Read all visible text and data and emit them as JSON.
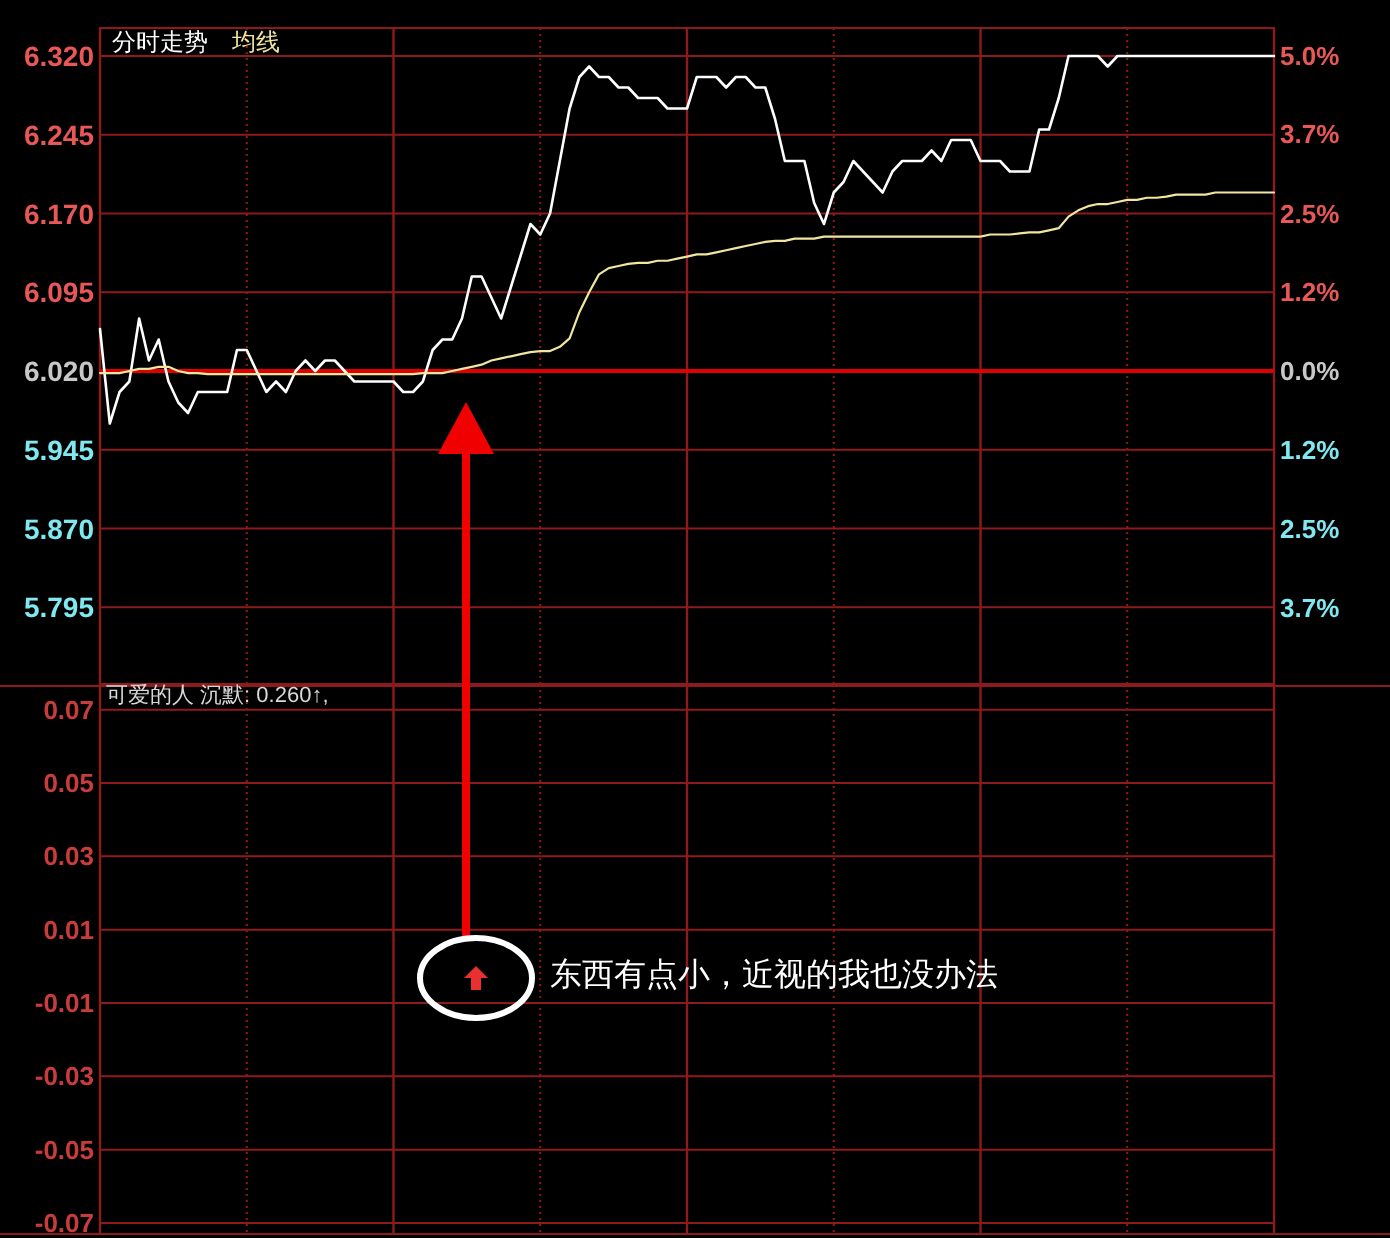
{
  "chart_data": [
    {
      "type": "line",
      "categories": [
        null,
        null,
        null,
        null,
        null,
        null,
        null,
        null,
        null,
        null,
        null,
        null,
        null,
        null,
        null,
        null,
        null,
        null,
        null,
        null,
        null,
        null,
        null,
        null,
        null,
        null,
        null,
        null,
        null,
        null,
        null,
        null,
        null,
        null,
        null,
        null,
        null,
        null,
        null,
        null,
        null,
        null,
        null,
        null,
        null,
        null,
        null,
        null,
        null,
        null,
        null,
        null,
        null,
        null,
        null,
        null,
        null,
        null,
        null,
        null,
        null,
        null,
        null,
        null,
        null,
        null,
        null,
        null,
        null,
        null,
        null,
        null,
        null,
        null,
        null,
        null,
        null,
        null,
        null,
        null,
        null,
        null,
        null,
        null,
        null,
        null,
        null,
        null,
        null,
        null,
        null,
        null,
        null,
        null,
        null,
        null,
        null,
        null,
        null,
        null,
        null,
        null,
        null,
        null,
        null,
        null,
        null,
        null,
        null,
        null,
        null,
        null,
        null,
        null,
        null,
        null,
        null,
        null,
        null,
        null,
        null
      ],
      "series": [
        {
          "name": "分时走势",
          "color": "#ffffff",
          "values": [
            6.06,
            5.97,
            6.0,
            6.01,
            6.07,
            6.03,
            6.05,
            6.01,
            5.99,
            5.98,
            6.0,
            6.0,
            6.0,
            6.0,
            6.04,
            6.04,
            6.02,
            6.0,
            6.01,
            6.0,
            6.02,
            6.03,
            6.02,
            6.03,
            6.03,
            6.02,
            6.01,
            6.01,
            6.01,
            6.01,
            6.01,
            6.0,
            6.0,
            6.01,
            6.04,
            6.05,
            6.05,
            6.07,
            6.11,
            6.11,
            6.09,
            6.07,
            6.1,
            6.13,
            6.16,
            6.15,
            6.17,
            6.22,
            6.27,
            6.3,
            6.31,
            6.3,
            6.3,
            6.29,
            6.29,
            6.28,
            6.28,
            6.28,
            6.27,
            6.27,
            6.27,
            6.3,
            6.3,
            6.3,
            6.29,
            6.3,
            6.3,
            6.29,
            6.29,
            6.26,
            6.22,
            6.22,
            6.22,
            6.18,
            6.16,
            6.19,
            6.2,
            6.22,
            6.21,
            6.2,
            6.19,
            6.21,
            6.22,
            6.22,
            6.22,
            6.23,
            6.22,
            6.24,
            6.24,
            6.24,
            6.22,
            6.22,
            6.22,
            6.21,
            6.21,
            6.21,
            6.25,
            6.25,
            6.28,
            6.32,
            6.32,
            6.32,
            6.32,
            6.31,
            6.32,
            6.32,
            6.32,
            6.32,
            6.32,
            6.32,
            6.32,
            6.32,
            6.32,
            6.32,
            6.32,
            6.32,
            6.32,
            6.32,
            6.32,
            6.32,
            6.32
          ]
        },
        {
          "name": "均线",
          "color": "#f0e6a0",
          "values": [
            6.018,
            6.018,
            6.018,
            6.02,
            6.022,
            6.022,
            6.024,
            6.024,
            6.02,
            6.018,
            6.018,
            6.017,
            6.017,
            6.017,
            6.017,
            6.017,
            6.017,
            6.017,
            6.017,
            6.017,
            6.017,
            6.017,
            6.017,
            6.017,
            6.017,
            6.017,
            6.017,
            6.017,
            6.017,
            6.017,
            6.017,
            6.017,
            6.017,
            6.018,
            6.018,
            6.018,
            6.02,
            6.022,
            6.024,
            6.026,
            6.03,
            6.032,
            6.034,
            6.036,
            6.038,
            6.039,
            6.039,
            6.043,
            6.051,
            6.076,
            6.095,
            6.112,
            6.118,
            6.12,
            6.122,
            6.123,
            6.123,
            6.125,
            6.125,
            6.127,
            6.129,
            6.131,
            6.131,
            6.133,
            6.135,
            6.137,
            6.139,
            6.141,
            6.143,
            6.144,
            6.144,
            6.146,
            6.146,
            6.146,
            6.148,
            6.148,
            6.148,
            6.148,
            6.148,
            6.148,
            6.148,
            6.148,
            6.148,
            6.148,
            6.148,
            6.148,
            6.148,
            6.148,
            6.148,
            6.148,
            6.148,
            6.15,
            6.15,
            6.15,
            6.151,
            6.152,
            6.152,
            6.154,
            6.156,
            6.167,
            6.173,
            6.177,
            6.179,
            6.179,
            6.181,
            6.183,
            6.183,
            6.185,
            6.185,
            6.186,
            6.188,
            6.188,
            6.188,
            6.188,
            6.19,
            6.19,
            6.19,
            6.19,
            6.19,
            6.19,
            6.19
          ]
        }
      ],
      "ylim": [
        5.72,
        6.32
      ],
      "yticks": [
        {
          "value": 6.32,
          "label": "6.320"
        },
        6.245,
        {
          "value": 6.17,
          "label": "6.170"
        },
        6.095,
        {
          "value": 6.02,
          "label": "6.020"
        },
        5.945,
        {
          "value": 5.87,
          "label": "5.870"
        },
        5.795
      ],
      "y2lim": [
        -4.98,
        4.98
      ],
      "y2ticks": [
        {
          "value": 4.98,
          "label": "5.0%"
        },
        {
          "value": 3.74,
          "label": "3.7%"
        },
        {
          "value": 2.49,
          "label": "2.5%"
        },
        {
          "value": 1.25,
          "label": "1.2%"
        },
        {
          "value": 0,
          "label": "0.0%"
        },
        {
          "value": -1.25,
          "label": "1.2%"
        },
        {
          "value": -2.49,
          "label": "2.5%"
        },
        {
          "value": -3.74,
          "label": "3.7%"
        }
      ],
      "grid": true,
      "ref_lines": [
        {
          "axis": "y",
          "value": 6.02,
          "color": "#e00000"
        }
      ],
      "legend": "top left",
      "tick_labels": "y"
    },
    {
      "type": "line",
      "title": "可爱的人 沉默: 0.260↑,",
      "categories": [
        null,
        null,
        null,
        null,
        null,
        null,
        null,
        null,
        null,
        null,
        null,
        null,
        null,
        null,
        null,
        null,
        null,
        null,
        null,
        null,
        null,
        null,
        null,
        null,
        null,
        null,
        null,
        null,
        null,
        null,
        null,
        null,
        null,
        null,
        null,
        null,
        null,
        null,
        null,
        null,
        null,
        null,
        null,
        null,
        null,
        null,
        null,
        null,
        null,
        null,
        null,
        null,
        null,
        null,
        null,
        null,
        null,
        null,
        null,
        null,
        null,
        null,
        null,
        null,
        null,
        null,
        null,
        null,
        null,
        null,
        null,
        null,
        null,
        null,
        null,
        null,
        null,
        null,
        null,
        null,
        null,
        null,
        null,
        null,
        null,
        null,
        null,
        null,
        null,
        null,
        null,
        null,
        null,
        null,
        null,
        null,
        null,
        null,
        null,
        null,
        null,
        null,
        null,
        null,
        null,
        null,
        null,
        null,
        null,
        null,
        null,
        null,
        null,
        null,
        null,
        null,
        null,
        null,
        null,
        null,
        null
      ],
      "values": [
        null,
        null,
        null,
        null,
        null,
        null,
        null,
        null,
        null,
        null,
        null,
        null,
        null,
        null,
        null,
        null,
        null,
        null,
        null,
        null,
        null,
        null,
        null,
        null,
        null,
        null,
        null,
        null,
        null,
        null,
        null,
        null,
        null,
        null,
        null,
        null,
        null,
        null,
        null,
        null,
        null,
        null,
        null,
        null,
        null,
        null,
        null,
        null,
        null,
        null,
        null,
        null,
        null,
        null,
        null,
        null,
        null,
        null,
        null,
        null,
        null,
        null,
        null,
        null,
        null,
        null,
        null,
        null,
        null,
        null,
        null,
        null,
        null,
        null,
        null,
        null,
        null,
        null,
        null,
        null,
        null,
        null,
        null,
        null,
        null,
        null,
        null,
        null,
        null,
        null,
        null,
        null,
        null,
        null,
        null,
        null,
        null,
        null,
        null,
        null,
        null,
        null,
        null,
        null,
        null,
        null,
        null,
        null,
        null,
        null,
        null,
        null,
        null,
        null,
        null,
        null,
        null,
        null,
        null,
        null,
        null
      ],
      "ylim": [
        -0.073,
        0.077
      ],
      "yticks": [
        0.07,
        0.05,
        0.03,
        0.01,
        -0.01,
        -0.03,
        -0.05,
        -0.07
      ],
      "grid": true,
      "tick_labels": "y",
      "annotations": [
        "东西有点小，近视的我也没办法"
      ]
    }
  ]
}
